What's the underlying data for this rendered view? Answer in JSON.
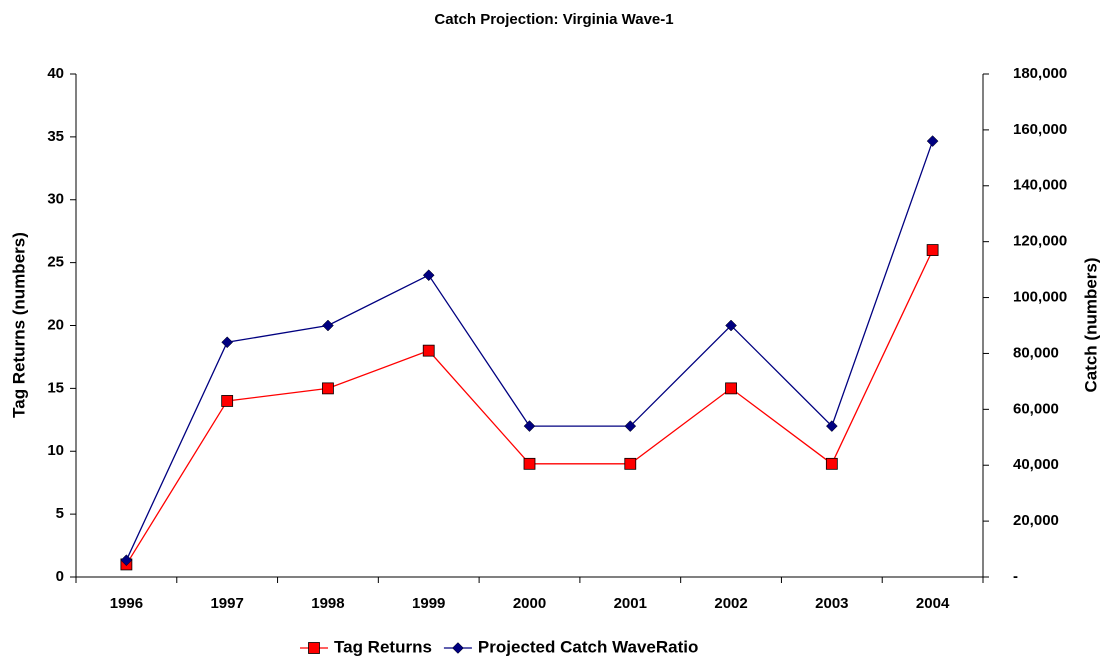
{
  "chart_data": {
    "type": "line",
    "title": "Catch Projection: Virginia Wave-1",
    "categories": [
      "1996",
      "1997",
      "1998",
      "1999",
      "2000",
      "2001",
      "2002",
      "2003",
      "2004"
    ],
    "ylabel": "Tag Returns (numbers)",
    "y2label": "Catch (numbers)",
    "ylim": [
      0,
      40
    ],
    "yticks": [
      0,
      5,
      10,
      15,
      20,
      25,
      30,
      35,
      40
    ],
    "y2lim": [
      0,
      180000
    ],
    "y2ticks": [
      {
        "value": 0,
        "label": "-"
      },
      {
        "value": 20000,
        "label": "20,000"
      },
      {
        "value": 40000,
        "label": "40,000"
      },
      {
        "value": 60000,
        "label": "60,000"
      },
      {
        "value": 80000,
        "label": "80,000"
      },
      {
        "value": 100000,
        "label": "100,000"
      },
      {
        "value": 120000,
        "label": "120,000"
      },
      {
        "value": 140000,
        "label": "140,000"
      },
      {
        "value": 160000,
        "label": "160,000"
      },
      {
        "value": 180000,
        "label": "180,000"
      }
    ],
    "grid": false,
    "series": [
      {
        "name": "Tag Returns",
        "color": "#ff0000",
        "marker": "square",
        "values": [
          1,
          14,
          15,
          18,
          9,
          9,
          15,
          9,
          26
        ]
      },
      {
        "name": "Projected Catch WaveRatio",
        "color": "#000080",
        "marker": "diamond",
        "axis": "y2",
        "values": [
          6000,
          84000,
          90000,
          108000,
          54000,
          54000,
          90000,
          54000,
          156000
        ]
      }
    ]
  }
}
